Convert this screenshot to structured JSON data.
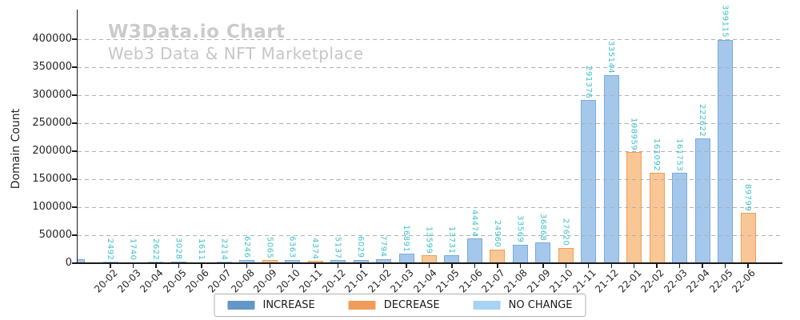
{
  "title": "W3Data.io Chart",
  "subtitle": "Web3 Data & NFT Marketplace",
  "y_axis": {
    "label": "Domain Count",
    "tick_min": 0,
    "tick_max": 400000,
    "tick_step": 50000
  },
  "legend": {
    "items": [
      {
        "key": "increase",
        "label": "INCREASE"
      },
      {
        "key": "decrease",
        "label": "DECREASE"
      },
      {
        "key": "no_change",
        "label": "NO CHANGE"
      }
    ]
  },
  "colors": {
    "title_text": "#cbcbcb",
    "value_label": "#3EC1C9",
    "grid": "#b0b0b0",
    "axis_text": "#262626",
    "increase_fill": "#A4C7EB",
    "increase_edge": "#7AACDC",
    "decrease_fill": "#F9C795",
    "decrease_edge": "#F09E59",
    "no_change_fill": "#BADDF8",
    "no_change_edge": "#97C9F1",
    "legend_increase": "#6396C9",
    "legend_decrease": "#F09D5B",
    "legend_no_change": "#A7D3F5"
  },
  "chart_data": {
    "type": "bar",
    "title": "W3Data.io Chart",
    "subtitle": "Web3 Data & NFT Marketplace",
    "xlabel": "",
    "ylabel": "Domain Count",
    "ylim": [
      0,
      450000
    ],
    "yticks": [
      0,
      50000,
      100000,
      150000,
      200000,
      250000,
      300000,
      350000,
      400000
    ],
    "grid": "horizontal dashed",
    "legend_position": "bottom center",
    "value_label_style": "teal, rotated 90deg, above each bar",
    "categories": [
      "20-02",
      "20-03",
      "20-04",
      "20-05",
      "20-06",
      "20-07",
      "20-08",
      "20-09",
      "20-10",
      "20-11",
      "20-12",
      "21-01",
      "21-02",
      "21-03",
      "21-04",
      "21-05",
      "21-06",
      "21-07",
      "21-08",
      "21-09",
      "21-10",
      "21-11",
      "21-12",
      "22-01",
      "22-02",
      "22-03",
      "22-04",
      "22-05",
      "22-06"
    ],
    "values": [
      2492,
      1740,
      2622,
      3028,
      1611,
      2214,
      6246,
      5065,
      6363,
      4374,
      5137,
      6029,
      7794,
      16891,
      13599,
      13731,
      44474,
      24960,
      33569,
      36868,
      27620,
      291376,
      335144,
      198959,
      161092,
      161753,
      222622,
      399115,
      89799
    ],
    "bar_types": [
      "no_change",
      "decrease",
      "no_change",
      "increase",
      "decrease",
      "no_change",
      "increase",
      "decrease",
      "increase",
      "decrease",
      "increase",
      "increase",
      "increase",
      "increase",
      "decrease",
      "increase",
      "increase",
      "decrease",
      "increase",
      "increase",
      "decrease",
      "increase",
      "increase",
      "decrease",
      "decrease",
      "increase",
      "increase",
      "increase",
      "decrease"
    ],
    "partial_bar_at_left_axis": {
      "type": "increase",
      "note": "small unlabeled bar clipped by the y-axis at the plot's left corner"
    }
  }
}
